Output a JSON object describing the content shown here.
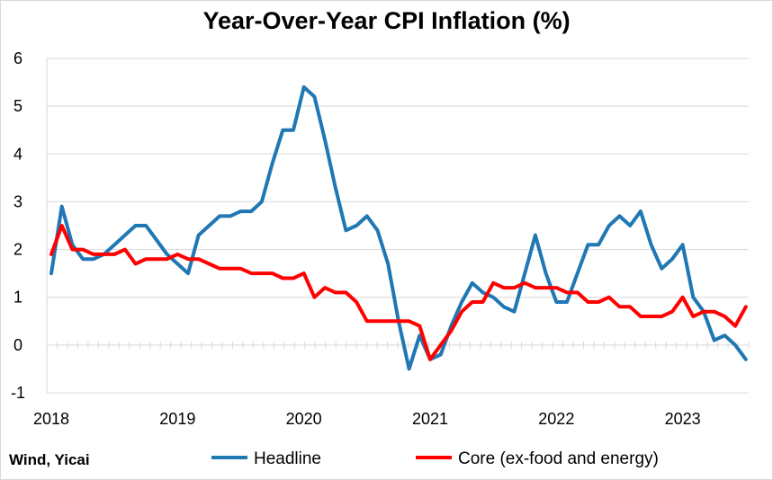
{
  "chart_data": {
    "type": "line",
    "title": "Year-Over-Year CPI Inflation (%)",
    "xlabel": "",
    "ylabel": "",
    "x_ticks": [
      "2018",
      "2019",
      "2020",
      "2021",
      "2022",
      "2023"
    ],
    "y_ticks": [
      -1,
      0,
      1,
      2,
      3,
      4,
      5,
      6
    ],
    "ylim": [
      -1,
      6
    ],
    "xlim": [
      "2018-01",
      "2023-07"
    ],
    "grid": true,
    "legend_position": "bottom",
    "x": [
      "2018-01",
      "2018-02",
      "2018-03",
      "2018-04",
      "2018-05",
      "2018-06",
      "2018-07",
      "2018-08",
      "2018-09",
      "2018-10",
      "2018-11",
      "2018-12",
      "2019-01",
      "2019-02",
      "2019-03",
      "2019-04",
      "2019-05",
      "2019-06",
      "2019-07",
      "2019-08",
      "2019-09",
      "2019-10",
      "2019-11",
      "2019-12",
      "2020-01",
      "2020-02",
      "2020-03",
      "2020-04",
      "2020-05",
      "2020-06",
      "2020-07",
      "2020-08",
      "2020-09",
      "2020-10",
      "2020-11",
      "2020-12",
      "2021-01",
      "2021-02",
      "2021-03",
      "2021-04",
      "2021-05",
      "2021-06",
      "2021-07",
      "2021-08",
      "2021-09",
      "2021-10",
      "2021-11",
      "2021-12",
      "2022-01",
      "2022-02",
      "2022-03",
      "2022-04",
      "2022-05",
      "2022-06",
      "2022-07",
      "2022-08",
      "2022-09",
      "2022-10",
      "2022-11",
      "2022-12",
      "2023-01",
      "2023-02",
      "2023-03",
      "2023-04",
      "2023-05",
      "2023-06",
      "2023-07"
    ],
    "series": [
      {
        "name": "Headline",
        "color": "#1F77B4",
        "values": [
          1.5,
          2.9,
          2.1,
          1.8,
          1.8,
          1.9,
          2.1,
          2.3,
          2.5,
          2.5,
          2.2,
          1.9,
          1.7,
          1.5,
          2.3,
          2.5,
          2.7,
          2.7,
          2.8,
          2.8,
          3.0,
          3.8,
          4.5,
          4.5,
          5.4,
          5.2,
          4.3,
          3.3,
          2.4,
          2.5,
          2.7,
          2.4,
          1.7,
          0.5,
          -0.5,
          0.2,
          -0.3,
          -0.2,
          0.4,
          0.9,
          1.3,
          1.1,
          1.0,
          0.8,
          0.7,
          1.5,
          2.3,
          1.5,
          0.9,
          0.9,
          1.5,
          2.1,
          2.1,
          2.5,
          2.7,
          2.5,
          2.8,
          2.1,
          1.6,
          1.8,
          2.1,
          1.0,
          0.7,
          0.1,
          0.2,
          0.0,
          -0.3
        ]
      },
      {
        "name": "Core (ex-food and energy)",
        "color": "#FF0000",
        "values": [
          1.9,
          2.5,
          2.0,
          2.0,
          1.9,
          1.9,
          1.9,
          2.0,
          1.7,
          1.8,
          1.8,
          1.8,
          1.9,
          1.8,
          1.8,
          1.7,
          1.6,
          1.6,
          1.6,
          1.5,
          1.5,
          1.5,
          1.4,
          1.4,
          1.5,
          1.0,
          1.2,
          1.1,
          1.1,
          0.9,
          0.5,
          0.5,
          0.5,
          0.5,
          0.5,
          0.4,
          -0.3,
          0.0,
          0.3,
          0.7,
          0.9,
          0.9,
          1.3,
          1.2,
          1.2,
          1.3,
          1.2,
          1.2,
          1.2,
          1.1,
          1.1,
          0.9,
          0.9,
          1.0,
          0.8,
          0.8,
          0.6,
          0.6,
          0.6,
          0.7,
          1.0,
          0.6,
          0.7,
          0.7,
          0.6,
          0.4,
          0.8
        ]
      }
    ]
  },
  "source": "Wind, Yicai"
}
